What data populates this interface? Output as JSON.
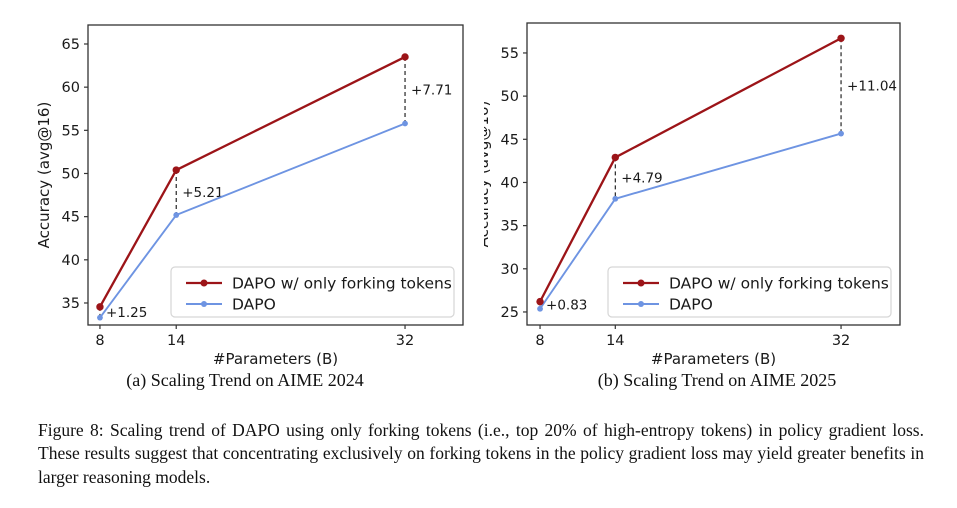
{
  "figure": {
    "caption": "Figure 8: Scaling trend of DAPO using only forking tokens (i.e., top 20% of high-entropy tokens) in policy gradient loss. These results suggest that concentrating exclusively on forking tokens in the policy gradient loss may yield greater benefits in larger reasoning models."
  },
  "colors": {
    "forking": "#9c1418",
    "dapo": "#6e94e2",
    "spine": "#333333",
    "text": "#1a1a1a",
    "dash": "#111111",
    "legend_border": "#d6d6d6"
  },
  "chart_data": [
    {
      "type": "line",
      "title": "(a) Scaling Trend on AIME 2024",
      "xlabel": "#Parameters (B)",
      "ylabel": "Accuracy (avg@16)",
      "x": [
        8,
        14,
        32
      ],
      "xticklabels": [
        "8",
        "14",
        "32"
      ],
      "yticks": [
        35,
        40,
        45,
        50,
        55,
        60,
        65
      ],
      "xlim": [
        7.06,
        36.56
      ],
      "ylim": [
        32.45,
        67.2
      ],
      "grid": false,
      "legend_position": "lower right",
      "series": [
        {
          "name": "DAPO w/ only forking tokens",
          "color_key": "forking",
          "values": [
            34.55,
            50.4,
            63.5
          ]
        },
        {
          "name": "DAPO",
          "color_key": "dapo",
          "values": [
            33.3,
            45.19,
            55.79
          ]
        }
      ],
      "annotations": [
        "+1.25",
        "+5.21",
        "+7.71"
      ]
    },
    {
      "type": "line",
      "title": "(b) Scaling Trend on AIME 2025",
      "xlabel": "#Parameters (B)",
      "ylabel": "Accuracy (avg@16)",
      "x": [
        8,
        14,
        32
      ],
      "xticklabels": [
        "8",
        "14",
        "32"
      ],
      "yticks": [
        25,
        30,
        35,
        40,
        45,
        50,
        55
      ],
      "xlim": [
        6.96,
        36.7
      ],
      "ylim": [
        23.49,
        58.47
      ],
      "grid": false,
      "legend_position": "lower right",
      "series": [
        {
          "name": "DAPO w/ only forking tokens",
          "color_key": "forking",
          "values": [
            26.2,
            42.9,
            56.7
          ]
        },
        {
          "name": "DAPO",
          "color_key": "dapo",
          "values": [
            25.37,
            38.11,
            45.66
          ]
        }
      ],
      "annotations": [
        "+0.83",
        "+4.79",
        "+11.04"
      ]
    }
  ]
}
